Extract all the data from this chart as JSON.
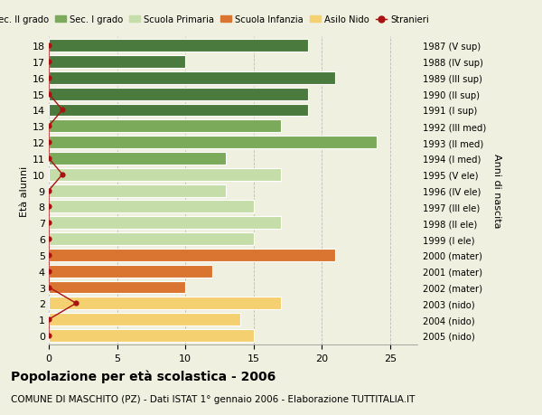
{
  "ages": [
    18,
    17,
    16,
    15,
    14,
    13,
    12,
    11,
    10,
    9,
    8,
    7,
    6,
    5,
    4,
    3,
    2,
    1,
    0
  ],
  "years": [
    "1987 (V sup)",
    "1988 (IV sup)",
    "1989 (III sup)",
    "1990 (II sup)",
    "1991 (I sup)",
    "1992 (III med)",
    "1993 (II med)",
    "1994 (I med)",
    "1995 (V ele)",
    "1996 (IV ele)",
    "1997 (III ele)",
    "1998 (II ele)",
    "1999 (I ele)",
    "2000 (mater)",
    "2001 (mater)",
    "2002 (mater)",
    "2003 (nido)",
    "2004 (nido)",
    "2005 (nido)"
  ],
  "bar_values": [
    19,
    10,
    21,
    19,
    19,
    17,
    24,
    13,
    17,
    13,
    15,
    17,
    15,
    21,
    12,
    10,
    17,
    14,
    15
  ],
  "stranieri_values": [
    0,
    0,
    0,
    0,
    1,
    0,
    0,
    0,
    1,
    0,
    0,
    0,
    0,
    0,
    0,
    0,
    2,
    0,
    0
  ],
  "bar_colors": [
    "#4a7a3d",
    "#4a7a3d",
    "#4a7a3d",
    "#4a7a3d",
    "#4a7a3d",
    "#7aaa5a",
    "#7aaa5a",
    "#7aaa5a",
    "#c5dda8",
    "#c5dda8",
    "#c5dda8",
    "#c5dda8",
    "#c5dda8",
    "#d97530",
    "#d97530",
    "#d97530",
    "#f5d070",
    "#f5d070",
    "#f5d070"
  ],
  "legend_labels": [
    "Sec. II grado",
    "Sec. I grado",
    "Scuola Primaria",
    "Scuola Infanzia",
    "Asilo Nido",
    "Stranieri"
  ],
  "legend_colors": [
    "#4a7a3d",
    "#7aaa5a",
    "#c5dda8",
    "#d97530",
    "#f5d070",
    "#aa1111"
  ],
  "stranieri_color": "#aa1111",
  "title_main": "Popolazione per età scolastica - 2006",
  "title_sub": "COMUNE DI MASCHITO (PZ) - Dati ISTAT 1° gennaio 2006 - Elaborazione TUTTITALIA.IT",
  "ylabel": "Età alunni",
  "ylabel_right": "Anni di nascita",
  "xlim_max": 27,
  "xticks": [
    0,
    5,
    10,
    15,
    20,
    25
  ],
  "background_color": "#f0f0e0",
  "bar_height": 0.78,
  "grid_color": "#bbbbbb"
}
